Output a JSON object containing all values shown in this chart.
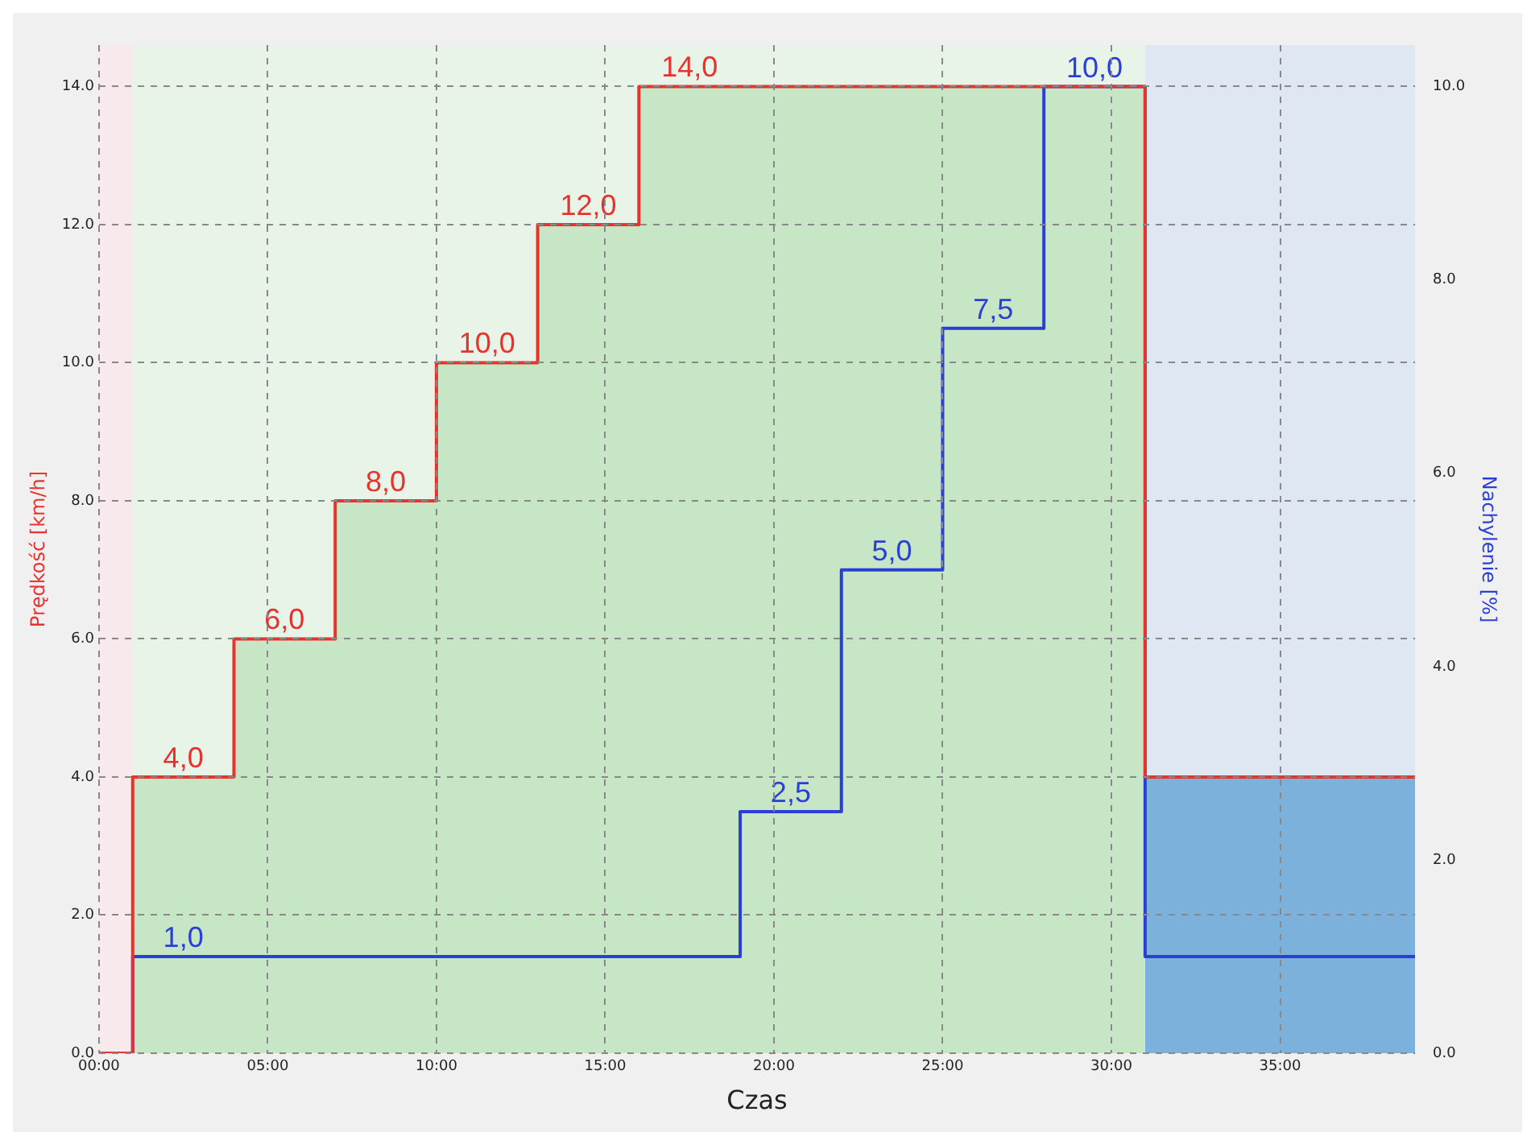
{
  "chart_data": {
    "type": "step",
    "xlabel": "Czas",
    "ylabel": "Prędkość [km/h]",
    "y2label": "Nachylenie [%]",
    "xlim": [
      0,
      39
    ],
    "xticks": [
      {
        "value": 0,
        "label": "00:00"
      },
      {
        "value": 5,
        "label": "05:00"
      },
      {
        "value": 10,
        "label": "10:00"
      },
      {
        "value": 15,
        "label": "15:00"
      },
      {
        "value": 20,
        "label": "20:00"
      },
      {
        "value": 25,
        "label": "25:00"
      },
      {
        "value": 30,
        "label": "30:00"
      },
      {
        "value": 35,
        "label": "35:00"
      }
    ],
    "ylim": [
      0,
      14.6
    ],
    "yticks": [
      {
        "value": 0,
        "label": "0.0"
      },
      {
        "value": 2,
        "label": "2.0"
      },
      {
        "value": 4,
        "label": "4.0"
      },
      {
        "value": 6,
        "label": "6.0"
      },
      {
        "value": 8,
        "label": "8.0"
      },
      {
        "value": 10,
        "label": "10.0"
      },
      {
        "value": 12,
        "label": "12.0"
      },
      {
        "value": 14,
        "label": "14.0"
      }
    ],
    "y2lim": [
      0,
      10.43
    ],
    "y2ticks": [
      {
        "value": 0,
        "label": "0.0"
      },
      {
        "value": 2,
        "label": "2.0"
      },
      {
        "value": 4,
        "label": "4.0"
      },
      {
        "value": 6,
        "label": "6.0"
      },
      {
        "value": 8,
        "label": "8.0"
      },
      {
        "value": 10,
        "label": "10.0"
      }
    ],
    "series": [
      {
        "type": "area",
        "color": "#c6e6c6",
        "x": [
          1,
          4,
          4,
          7,
          7,
          10,
          10,
          13,
          13,
          16,
          16,
          31
        ],
        "values": [
          4,
          4,
          6,
          6,
          8,
          8,
          10,
          10,
          12,
          12,
          14,
          14
        ]
      },
      {
        "type": "area",
        "color": "#7bb1db",
        "x": [
          31,
          39
        ],
        "values": [
          4,
          4
        ]
      },
      {
        "color": "#e8322e",
        "x": [
          0,
          1,
          4,
          7,
          10,
          13,
          16,
          31,
          39
        ],
        "values": [
          0,
          4,
          6,
          8,
          10,
          12,
          14,
          4,
          4
        ],
        "value_labels": [
          null,
          "4,0",
          "6,0",
          "8,0",
          "10,0",
          "12,0",
          "14,0",
          null,
          null
        ]
      },
      {
        "color": "#2a3fd6",
        "axis": "y2",
        "x": [
          0,
          1,
          19,
          22,
          25,
          28,
          31,
          39
        ],
        "values": [
          0,
          1,
          2.5,
          5,
          7.5,
          10,
          1,
          1
        ],
        "value_labels": [
          null,
          "1,0",
          "2,5",
          "5,0",
          "7,5",
          "10,0",
          null,
          null
        ]
      }
    ],
    "bands": [
      {
        "axis": "x",
        "from": 0,
        "to": 1,
        "color": "#f7e9ec"
      },
      {
        "axis": "x",
        "from": 1,
        "to": 31,
        "color": "#e9f4e9"
      },
      {
        "axis": "x",
        "from": 31,
        "to": 39,
        "color": "#dfe8f2"
      }
    ],
    "grid": true,
    "line_style": "solid"
  }
}
